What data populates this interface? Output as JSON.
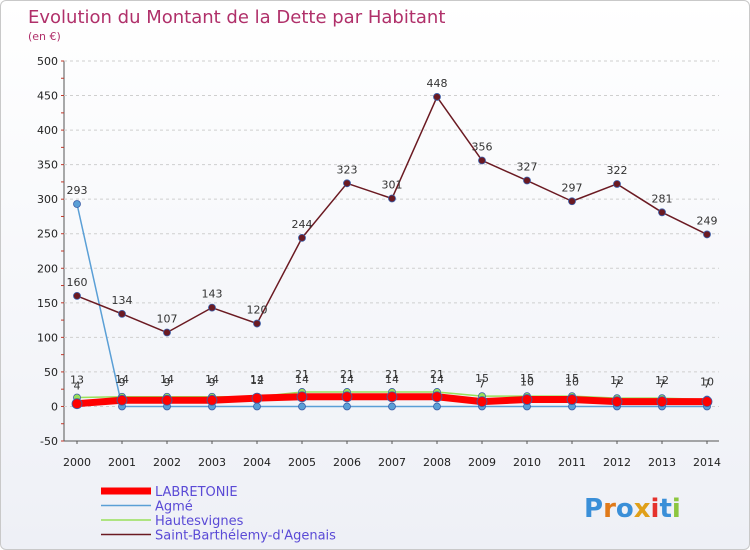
{
  "chart_data": {
    "type": "line",
    "title": "Evolution du Montant de la Dette par Habitant",
    "subtitle": "(en €)",
    "xlabel": "",
    "ylabel": "",
    "ylim": [
      -50,
      500
    ],
    "yticks": [
      -50,
      0,
      50,
      100,
      150,
      200,
      250,
      300,
      350,
      400,
      450,
      500
    ],
    "x": [
      "2000",
      "2001",
      "2002",
      "2003",
      "2004",
      "2005",
      "2006",
      "2007",
      "2008",
      "2009",
      "2010",
      "2011",
      "2012",
      "2013",
      "2014"
    ],
    "series": [
      {
        "name": "LABRETONIE",
        "color": "#ff0000",
        "values": [
          4,
          9,
          9,
          9,
          12,
          14,
          14,
          14,
          14,
          7,
          10,
          10,
          7,
          7,
          7
        ]
      },
      {
        "name": "Agmé",
        "color": "#5a9fd6",
        "values": [
          293,
          0,
          0,
          0,
          0,
          0,
          0,
          0,
          0,
          0,
          0,
          0,
          0,
          0,
          0
        ]
      },
      {
        "name": "Hautesvignes",
        "color": "#99e05a",
        "values": [
          13,
          14,
          14,
          14,
          14,
          21,
          21,
          21,
          21,
          15,
          15,
          15,
          12,
          12,
          10
        ]
      },
      {
        "name": "Saint-Barthélemy-d'Agenais",
        "color": "#6b1a22",
        "values": [
          160,
          134,
          107,
          143,
          120,
          244,
          323,
          301,
          448,
          356,
          327,
          297,
          322,
          281,
          249
        ]
      }
    ]
  },
  "logo": {
    "text": "Proxiti"
  }
}
